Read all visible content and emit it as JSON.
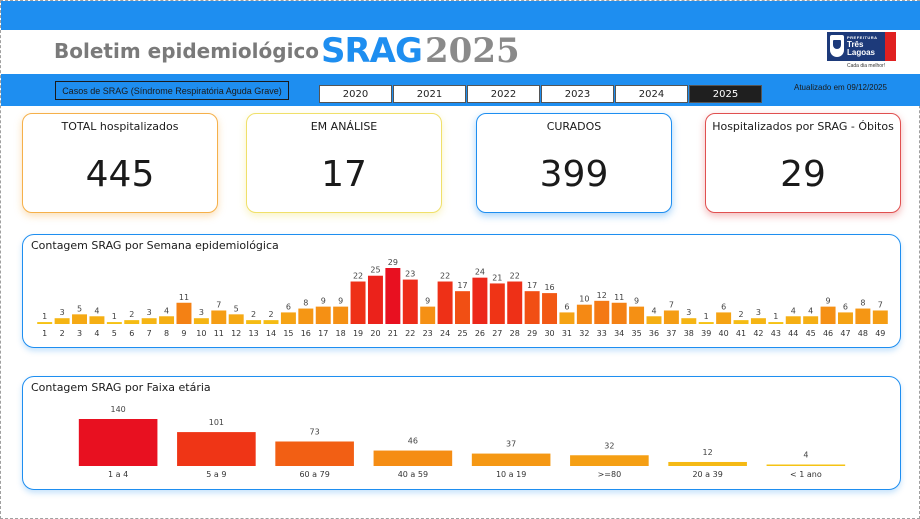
{
  "header": {
    "title": "Boletim epidemiológico",
    "title_srag": "SRAG",
    "title_year": "2025",
    "logo": {
      "prefeitura": "PREFEITURA",
      "city": "Três Lagoas",
      "tagline": "Cada dia melhor!"
    }
  },
  "filters": {
    "subtitle": "Casos de SRAG (Síndrome Respiratória Aguda Grave)",
    "years": [
      "2020",
      "2021",
      "2022",
      "2023",
      "2024",
      "2025"
    ],
    "selected_year": "2025",
    "updated": "Atualizado em 09/12/2025"
  },
  "kpis": [
    {
      "label": "TOTAL hospitalizados",
      "value": "445",
      "border": "#f5b04a"
    },
    {
      "label": "EM ANÁLISE",
      "value": "17",
      "border": "#f0e06a"
    },
    {
      "label": "CURADOS",
      "value": "399",
      "border": "#1e8ef0"
    },
    {
      "label": "Hospitalizados por SRAG - Óbitos",
      "value": "29",
      "border": "#e05050"
    }
  ],
  "weekly_panel": {
    "title": "Contagem SRAG por Semana epidemiológica"
  },
  "age_panel": {
    "title": "Contagem SRAG por Faixa etária"
  },
  "chart_data": [
    {
      "type": "bar",
      "title": "Contagem SRAG por Semana epidemiológica",
      "categories": [
        "1",
        "2",
        "3",
        "4",
        "5",
        "6",
        "7",
        "8",
        "9",
        "10",
        "11",
        "12",
        "13",
        "14",
        "15",
        "16",
        "17",
        "18",
        "19",
        "20",
        "21",
        "22",
        "23",
        "24",
        "25",
        "26",
        "27",
        "28",
        "29",
        "30",
        "31",
        "32",
        "33",
        "34",
        "35",
        "36",
        "37",
        "38",
        "39",
        "40",
        "41",
        "42",
        "43",
        "44",
        "45",
        "46",
        "47",
        "48",
        "49"
      ],
      "values": [
        1,
        3,
        5,
        4,
        1,
        2,
        3,
        4,
        11,
        3,
        7,
        5,
        2,
        2,
        6,
        8,
        9,
        9,
        22,
        25,
        29,
        23,
        9,
        22,
        17,
        24,
        21,
        22,
        17,
        16,
        6,
        10,
        12,
        11,
        9,
        4,
        7,
        3,
        1,
        6,
        2,
        3,
        1,
        4,
        4,
        9,
        6,
        8,
        7
      ]
    },
    {
      "type": "bar",
      "title": "Contagem SRAG por Faixa etária",
      "categories": [
        "1 a 4",
        "5 a 9",
        "60 a 79",
        "40 a 59",
        "10 a 19",
        ">=80",
        "20 a 39",
        "< 1 ano"
      ],
      "values": [
        140,
        101,
        73,
        46,
        37,
        32,
        12,
        4
      ]
    }
  ]
}
